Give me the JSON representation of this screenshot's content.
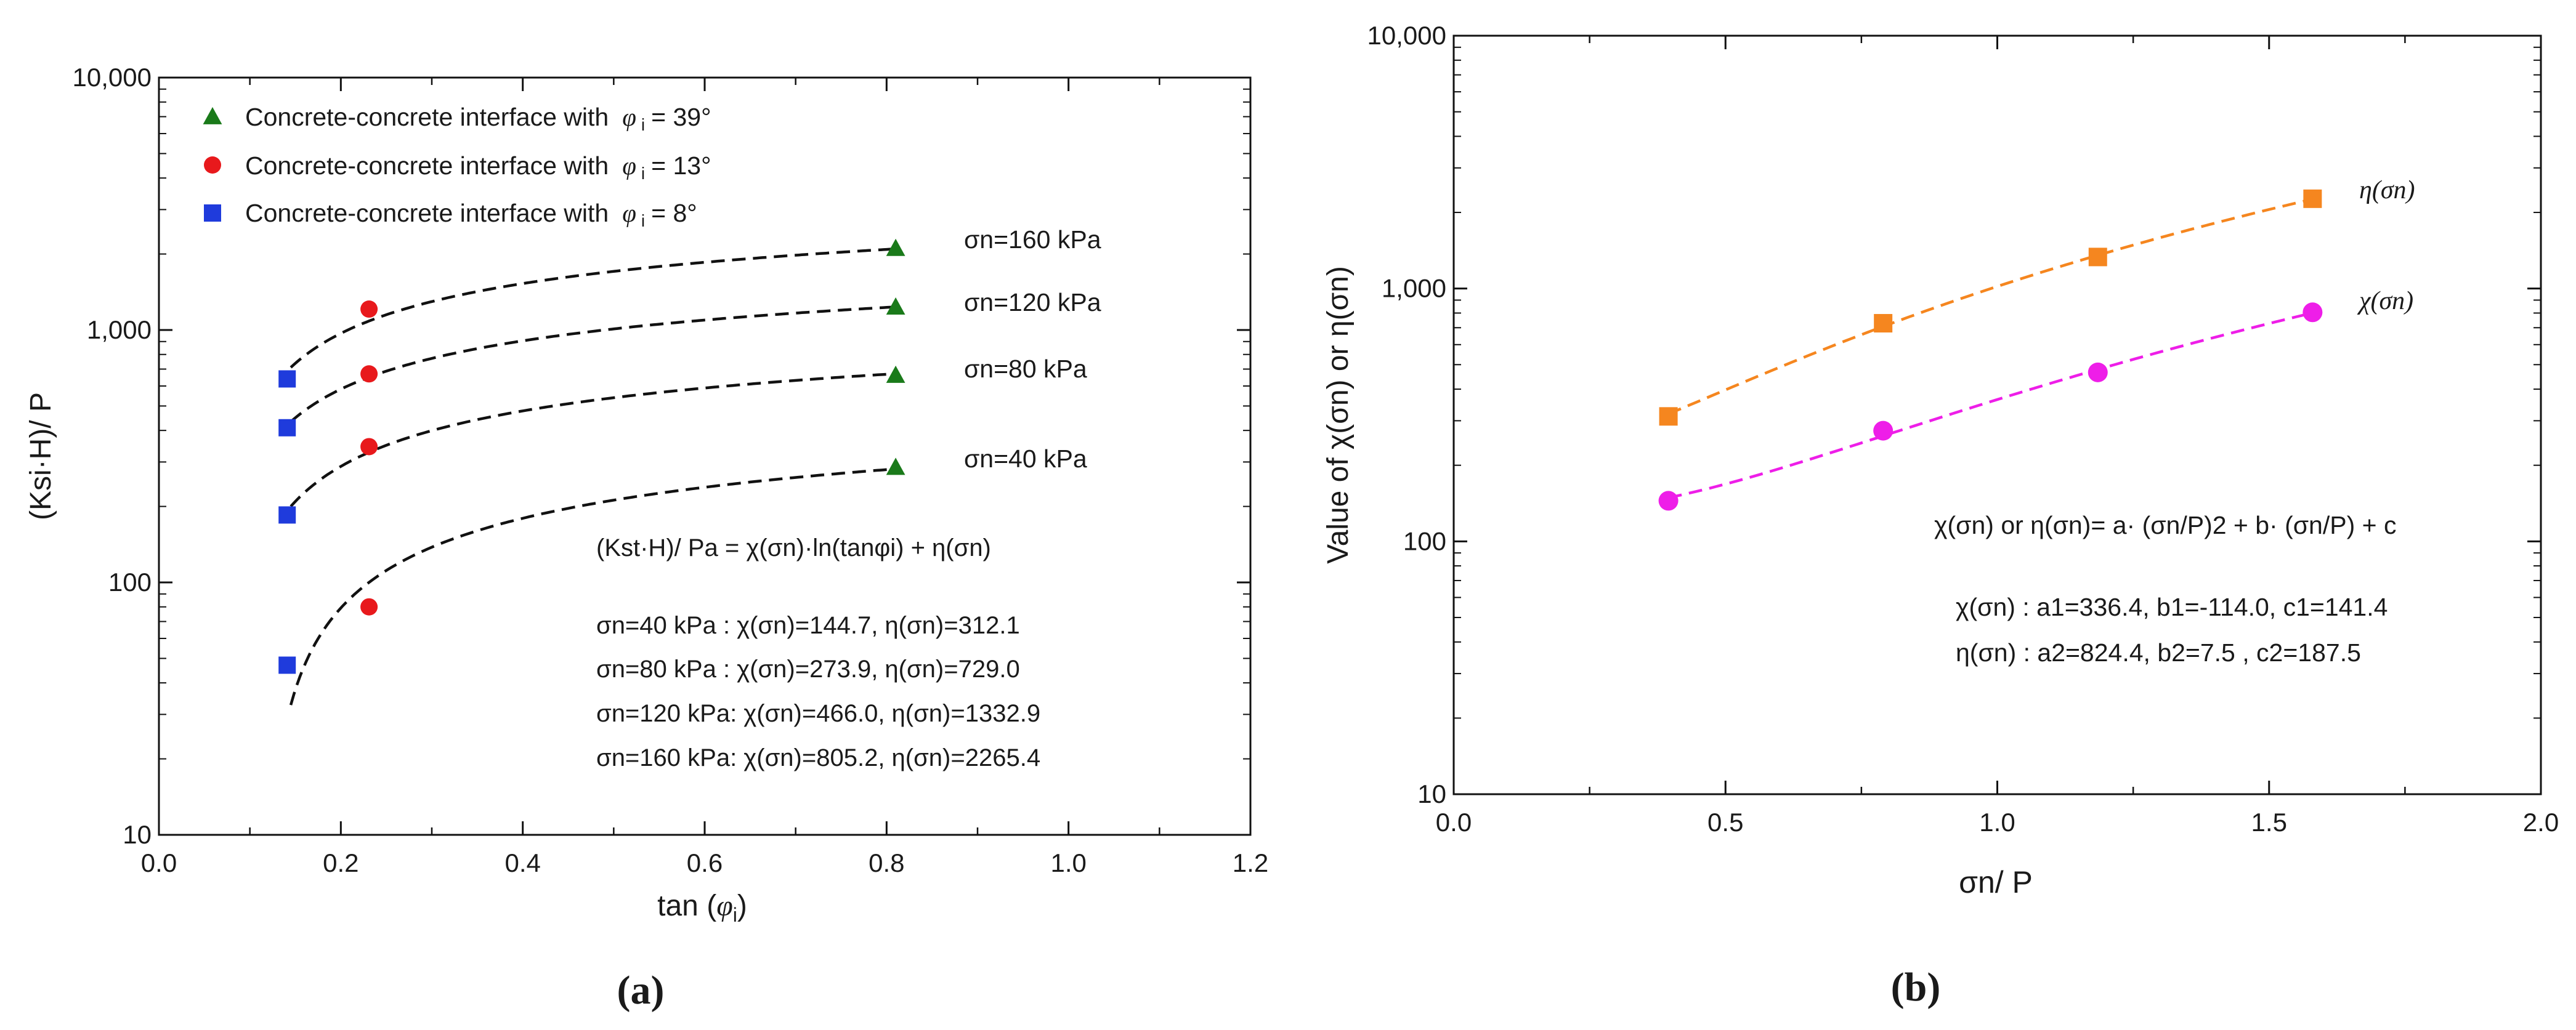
{
  "chart_data": [
    {
      "type": "scatter",
      "panel_label": "(a)",
      "xlabel": "tan (φi)",
      "xlabel_parts": [
        "tan (",
        "φ",
        "i",
        ")"
      ],
      "ylabel": "(Ksi·H)/ P",
      "xlim": [
        0.0,
        1.2
      ],
      "ylim": [
        10,
        10000
      ],
      "yscale": "log",
      "x_ticks": [
        "0.0",
        "0.2",
        "0.4",
        "0.6",
        "0.8",
        "1.0",
        "1.2"
      ],
      "x_tick_values": [
        0.0,
        0.2,
        0.4,
        0.6,
        0.8,
        1.0,
        1.2
      ],
      "y_ticks": [
        "10",
        "100",
        "1,000",
        "10,000"
      ],
      "y_tick_values": [
        10,
        100,
        1000,
        10000
      ],
      "legend": [
        {
          "label": "Concrete-concrete interface with",
          "phi": "φ",
          "phi_sub": "i",
          "value": "= 39°",
          "marker": "triangle",
          "color": "#1a7a1a"
        },
        {
          "label": "Concrete-concrete interface with",
          "phi": "φ",
          "phi_sub": "i",
          "value": "= 13°",
          "marker": "circle",
          "color": "#e8191c"
        },
        {
          "label": "Concrete-concrete interface with",
          "phi": "φ",
          "phi_sub": "i",
          "value": "= 8°",
          "marker": "square",
          "color": "#1f3bdc"
        }
      ],
      "series": [
        {
          "name": "φi = 39°",
          "marker": "triangle",
          "color": "#1a7a1a",
          "x": [
            0.81,
            0.81,
            0.81,
            0.81
          ],
          "y": [
            2100,
            1230,
            660,
            285
          ]
        },
        {
          "name": "φi = 13°",
          "marker": "circle",
          "color": "#e8191c",
          "x": [
            0.231,
            0.231,
            0.231,
            0.231
          ],
          "y": [
            1210,
            670,
            345,
            80
          ]
        },
        {
          "name": "φi = 8°",
          "marker": "square",
          "color": "#1f3bdc",
          "x": [
            0.141,
            0.141,
            0.141,
            0.141
          ],
          "y": [
            640,
            410,
            185,
            47
          ]
        }
      ],
      "fit_curves": [
        {
          "sigma": "160",
          "chi": 805.2,
          "eta": 2265.4
        },
        {
          "sigma": "120",
          "chi": 466.0,
          "eta": 1332.9
        },
        {
          "sigma": "80",
          "chi": 273.9,
          "eta": 729.0
        },
        {
          "sigma": "40",
          "chi": 144.7,
          "eta": 312.1
        }
      ],
      "fit_x_range": [
        0.145,
        0.81
      ],
      "curve_labels": [
        "σn=160 kPa",
        "σn=120 kPa",
        "σn=80  kPa",
        "σn=40  kPa"
      ],
      "equation": "(Kst·H)/ Pa = χ(σn)·ln(tanφi) + η(σn)",
      "param_lines": [
        "σn=40 kPa  : χ(σn)=144.7, η(σn)=312.1",
        "σn=80 kPa  : χ(σn)=273.9, η(σn)=729.0",
        "σn=120 kPa: χ(σn)=466.0, η(σn)=1332.9",
        "σn=160 kPa: χ(σn)=805.2, η(σn)=2265.4"
      ]
    },
    {
      "type": "scatter",
      "panel_label": "(b)",
      "xlabel": "σn/ P",
      "ylabel": "Value of χ(σn) or η(σn)",
      "xlim": [
        0.0,
        2.0
      ],
      "ylim": [
        10,
        10000
      ],
      "yscale": "log",
      "x_ticks": [
        "0.0",
        "0.5",
        "1.0",
        "1.5",
        "2.0"
      ],
      "x_tick_values": [
        0.0,
        0.5,
        1.0,
        1.5,
        2.0
      ],
      "y_ticks": [
        "10",
        "100",
        "1,000",
        "10,000"
      ],
      "y_tick_values": [
        10,
        100,
        1000,
        10000
      ],
      "series": [
        {
          "name": "η(σn)",
          "marker": "square",
          "color": "#f5861f",
          "x": [
            0.395,
            0.79,
            1.185,
            1.58
          ],
          "y": [
            312.1,
            729.0,
            1332.9,
            2265.4
          ],
          "fit": {
            "a": 824.4,
            "b": 7.5,
            "c": 187.5
          }
        },
        {
          "name": "χ(σn)",
          "marker": "circle",
          "color": "#ee1ee8",
          "x": [
            0.395,
            0.79,
            1.185,
            1.58
          ],
          "y": [
            144.7,
            273.9,
            466.0,
            805.2
          ],
          "fit": {
            "a": 336.4,
            "b": -114.0,
            "c": 141.4
          }
        }
      ],
      "series_labels": [
        "η(σn)",
        "χ(σn)"
      ],
      "equation": "χ(σn) or η(σn)= a· (σn/P)2 + b· (σn/P) + c",
      "param_lines": [
        "χ(σn) : a1=336.4, b1=-114.0, c1=141.4",
        "η(σn) : a2=824.4, b2=7.5     , c2=187.5"
      ]
    }
  ]
}
